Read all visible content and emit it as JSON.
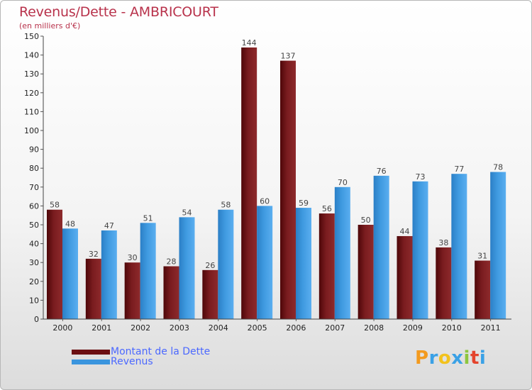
{
  "chart_data": {
    "type": "bar",
    "title": "Revenus/Dette - AMBRICOURT",
    "subtitle": "(en milliers d'€)",
    "categories": [
      "2000",
      "2001",
      "2002",
      "2003",
      "2004",
      "2005",
      "2006",
      "2007",
      "2008",
      "2009",
      "2010",
      "2011"
    ],
    "series": [
      {
        "name": "Montant de la Dette",
        "color": "#8b1a1a",
        "values": [
          58,
          32,
          30,
          28,
          26,
          144,
          137,
          56,
          50,
          44,
          38,
          31
        ]
      },
      {
        "name": "Revenus",
        "color": "#3a95de",
        "values": [
          48,
          47,
          51,
          54,
          58,
          60,
          59,
          70,
          76,
          73,
          77,
          78
        ]
      }
    ],
    "ylim": [
      0,
      150
    ],
    "yticks": [
      0,
      10,
      20,
      30,
      40,
      50,
      60,
      70,
      80,
      90,
      100,
      110,
      120,
      130,
      140,
      150
    ],
    "xlabel": "",
    "ylabel": "",
    "grid": false,
    "legend": "bottom-left"
  },
  "legend": {
    "items": [
      {
        "label": "Montant de la Dette",
        "color": "#6b0f12"
      },
      {
        "label": "Revenus",
        "color": "#3a95de"
      }
    ]
  },
  "brand": {
    "letters": [
      "P",
      "r",
      "o",
      "x",
      "i",
      "t",
      "i"
    ],
    "colors": [
      "#f39a1e",
      "#3aa1e6",
      "#f2c21d",
      "#3aa1e6",
      "#8dc63f",
      "#e4432c",
      "#3aa1e6"
    ]
  }
}
